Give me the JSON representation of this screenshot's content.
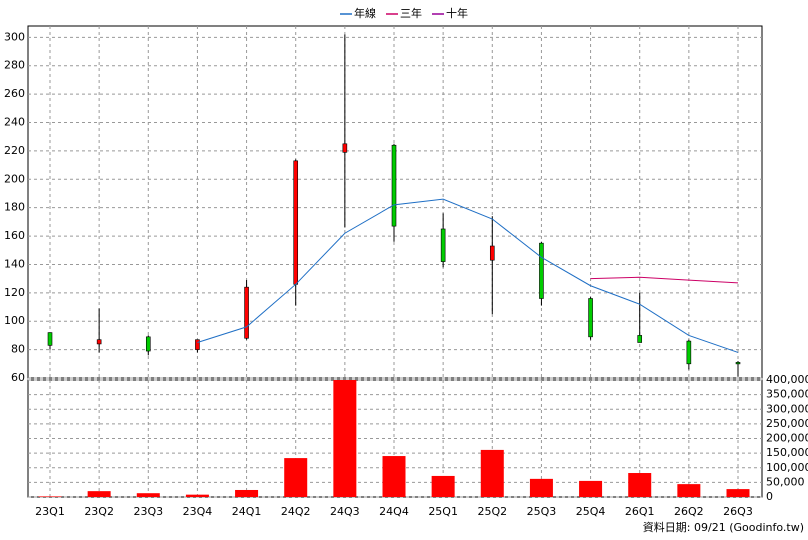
{
  "chart_data": {
    "type": "candlestick",
    "categories": [
      "23Q1",
      "23Q2",
      "23Q3",
      "23Q4",
      "24Q1",
      "24Q2",
      "24Q3",
      "24Q4",
      "25Q1",
      "25Q2",
      "25Q3",
      "25Q4",
      "26Q1",
      "26Q2",
      "26Q3"
    ],
    "open": [
      92,
      84,
      89,
      80,
      88,
      126,
      219,
      224,
      165,
      143,
      155,
      116,
      90,
      86,
      71
    ],
    "high": [
      92,
      109,
      90,
      87,
      129,
      214,
      302,
      225,
      176,
      174,
      156,
      117,
      120,
      87,
      72
    ],
    "low": [
      80,
      78,
      76,
      78,
      87,
      111,
      166,
      156,
      138,
      105,
      111,
      87,
      85,
      66,
      61
    ],
    "close": [
      83,
      87,
      79,
      87,
      124,
      213,
      225,
      167,
      142,
      153,
      116,
      89,
      85,
      70,
      70
    ],
    "up_color": "#ff0000",
    "down_color": "#00cc00",
    "series": [
      {
        "name": "年線",
        "color": "#1f6fc5",
        "values": [
          null,
          null,
          null,
          85,
          96,
          126,
          162,
          182,
          186,
          172,
          145,
          125,
          112,
          90,
          78
        ]
      },
      {
        "name": "三年",
        "color": "#cc0066",
        "values": [
          null,
          null,
          null,
          null,
          null,
          null,
          null,
          null,
          null,
          null,
          null,
          130,
          131,
          129,
          127
        ]
      },
      {
        "name": "十年",
        "color": "#990099",
        "values": [
          null,
          null,
          null,
          null,
          null,
          null,
          null,
          null,
          null,
          null,
          null,
          null,
          null,
          null,
          null
        ]
      }
    ],
    "ylim": [
      60,
      308
    ],
    "yticks": [
      60,
      80,
      100,
      120,
      140,
      160,
      180,
      200,
      220,
      240,
      260,
      280,
      300
    ],
    "grid": true,
    "volume": {
      "color": "#ff0000",
      "values": [
        2000,
        20000,
        13000,
        8000,
        24000,
        133000,
        400000,
        140000,
        72000,
        161000,
        62000,
        55000,
        82000,
        44000,
        27000
      ],
      "ylim": [
        0,
        400000
      ],
      "yticks": [
        0,
        {
          "value": 50000,
          "label": "50,000"
        },
        {
          "value": 100000,
          "label": "100,000"
        },
        {
          "value": 150000,
          "label": "150,000"
        },
        {
          "value": 200000,
          "label": "200,000"
        },
        {
          "value": 250000,
          "label": "250,000"
        },
        {
          "value": 300000,
          "label": "300,000"
        },
        {
          "value": 350000,
          "label": "350,000"
        },
        {
          "value": 400000,
          "label": "400,000"
        }
      ]
    },
    "footer": "資料日期: 09/21 (Goodinfo.tw)"
  }
}
